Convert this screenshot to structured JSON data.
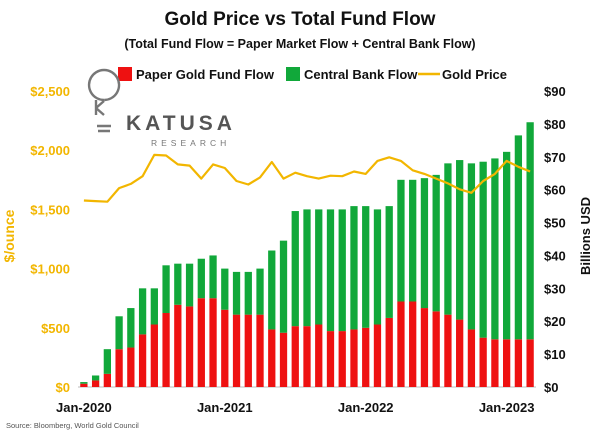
{
  "chart_data": {
    "type": "bar",
    "title": "Gold Price vs Total Fund Flow",
    "subtitle": "(Total Fund Flow = Paper Market Flow + Central Bank Flow)",
    "left_ylabel": "$/ounce",
    "right_ylabel": "Billions USD",
    "left_ylim": [
      0,
      2500
    ],
    "right_ylim": [
      0,
      90
    ],
    "left_ticks": [
      "$0",
      "$500",
      "$1,000",
      "$1,500",
      "$2,000",
      "$2,500"
    ],
    "right_ticks": [
      "$0",
      "$10",
      "$20",
      "$30",
      "$40",
      "$50",
      "$60",
      "$70",
      "$80",
      "$90"
    ],
    "x_tick_labels": [
      {
        "label": "Jan-2020",
        "index": 0
      },
      {
        "label": "Jan-2021",
        "index": 12
      },
      {
        "label": "Jan-2022",
        "index": 24
      },
      {
        "label": "Jan-2023",
        "index": 36
      }
    ],
    "stacked": true,
    "legend": {
      "placement": "top",
      "entries": [
        {
          "label": "Paper Gold Fund Flow",
          "color": "#ee1111",
          "kind": "bar"
        },
        {
          "label": "Central Bank Flow",
          "color": "#11a83a",
          "kind": "bar"
        },
        {
          "label": "Gold Price",
          "color": "#f2b600",
          "kind": "line"
        }
      ]
    },
    "series": [
      {
        "name": "Paper Gold Fund Flow",
        "axis": "right",
        "color": "#ee1111",
        "values": [
          1,
          2,
          4,
          11.5,
          12,
          16,
          19,
          22.5,
          25,
          24.5,
          27,
          27,
          23.5,
          22,
          22,
          22,
          17.5,
          16.5,
          18.5,
          18.5,
          19,
          17,
          17,
          17.5,
          18,
          19,
          21,
          26,
          26,
          24,
          23,
          22,
          20.5,
          17.5,
          15,
          14.5,
          14.5,
          14.5,
          14.5
        ]
      },
      {
        "name": "Central Bank Flow",
        "axis": "right",
        "color": "#11a83a",
        "values": [
          0.5,
          1.5,
          7.5,
          10,
          12,
          14,
          11,
          14.5,
          12.5,
          13,
          12,
          13,
          12.5,
          13,
          13,
          14,
          24,
          28,
          35,
          35.5,
          35,
          37,
          37,
          37.5,
          37,
          35,
          34,
          37,
          37,
          39.5,
          41.5,
          46,
          48.5,
          50.5,
          53.5,
          55,
          57,
          62,
          66
        ]
      },
      {
        "name": "Gold Price",
        "axis": "left",
        "type": "line",
        "color": "#f2b600",
        "values": [
          1575,
          1570,
          1565,
          1680,
          1715,
          1780,
          1960,
          1955,
          1880,
          1870,
          1760,
          1880,
          1850,
          1740,
          1710,
          1770,
          1900,
          1760,
          1810,
          1780,
          1760,
          1785,
          1780,
          1820,
          1800,
          1910,
          1940,
          1910,
          1830,
          1800,
          1760,
          1720,
          1670,
          1640,
          1740,
          1800,
          1910,
          1860,
          1820
        ]
      }
    ]
  },
  "logo": {
    "name": "KATUSA",
    "sub": "RESEARCH"
  },
  "source": "Source: Bloomberg, World Gold Council"
}
